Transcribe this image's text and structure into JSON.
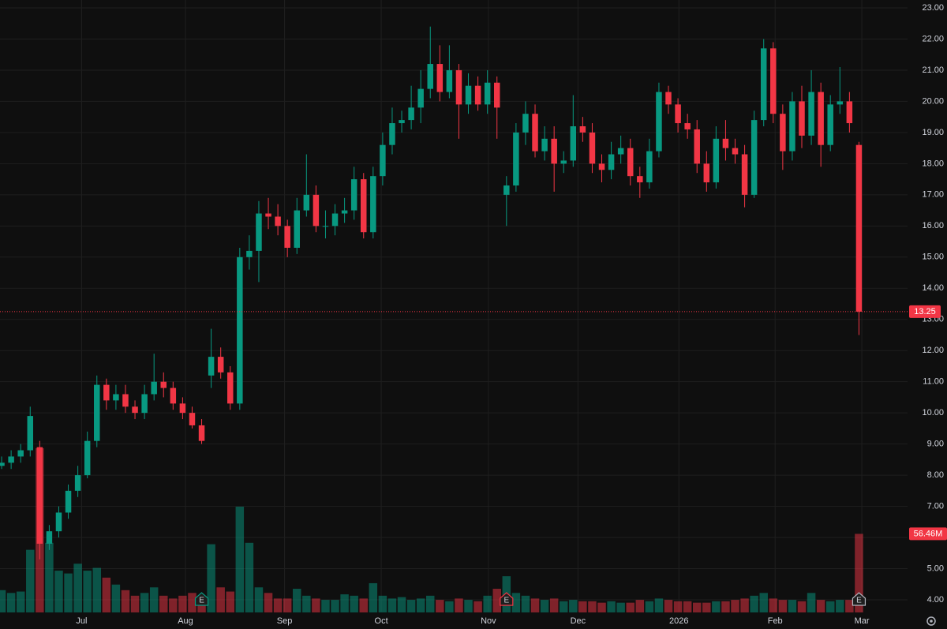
{
  "chart_data": {
    "type": "candlestick",
    "open": [
      8.3,
      8.4,
      8.6,
      8.8,
      8.9,
      5.8,
      6.2,
      6.8,
      7.5,
      8.0,
      9.1,
      10.9,
      10.4,
      10.6,
      10.2,
      10.0,
      10.6,
      11.0,
      10.8,
      10.3,
      10.0,
      9.6,
      11.2,
      11.8,
      11.3,
      10.3,
      15.0,
      15.2,
      16.4,
      16.3,
      16.0,
      15.3,
      16.5,
      17.0,
      16.0,
      16.0,
      16.4,
      16.5,
      17.5,
      15.8,
      17.6,
      18.6,
      19.3,
      19.4,
      19.8,
      20.4,
      21.2,
      20.3,
      21.0,
      19.9,
      20.5,
      19.9,
      20.6,
      17.0,
      17.3,
      19.0,
      19.6,
      18.4,
      18.8,
      18.0,
      18.1,
      19.2,
      19.0,
      18.0,
      17.8,
      18.3,
      18.5,
      17.6,
      17.4,
      18.4,
      20.3,
      19.9,
      19.3,
      19.1,
      18.0,
      17.4,
      18.8,
      18.5,
      18.3,
      17.0,
      19.4,
      21.7,
      19.6,
      18.4,
      20.0,
      18.9,
      20.3,
      18.6,
      19.9,
      20.0,
      18.6
    ],
    "high": [
      8.6,
      8.8,
      9.0,
      10.2,
      9.1,
      6.4,
      7.0,
      7.7,
      8.3,
      9.4,
      11.2,
      11.1,
      10.9,
      10.9,
      10.4,
      10.9,
      11.9,
      11.3,
      11.0,
      10.5,
      10.2,
      9.8,
      12.7,
      12.1,
      11.5,
      15.3,
      15.7,
      16.8,
      16.9,
      16.7,
      16.2,
      16.9,
      18.3,
      17.3,
      16.5,
      16.7,
      16.9,
      17.9,
      17.7,
      17.9,
      19.0,
      19.8,
      19.7,
      20.5,
      21.0,
      22.4,
      21.8,
      21.8,
      21.2,
      20.9,
      20.8,
      21.0,
      20.8,
      17.6,
      19.3,
      20.0,
      19.9,
      19.2,
      19.2,
      18.4,
      20.2,
      19.5,
      19.3,
      18.3,
      18.7,
      18.9,
      18.8,
      17.9,
      18.8,
      20.6,
      20.5,
      20.1,
      19.6,
      19.4,
      18.4,
      19.2,
      19.4,
      18.8,
      18.6,
      19.7,
      22.0,
      21.9,
      19.9,
      20.3,
      20.5,
      21.0,
      20.6,
      20.2,
      21.1,
      20.3,
      18.7
    ],
    "low": [
      8.2,
      8.2,
      8.4,
      8.6,
      5.3,
      5.6,
      6.0,
      6.6,
      7.3,
      7.9,
      8.9,
      10.1,
      10.1,
      10.0,
      9.8,
      9.8,
      10.4,
      10.5,
      10.1,
      9.8,
      9.5,
      9.0,
      10.8,
      11.1,
      10.1,
      10.1,
      14.6,
      14.2,
      15.9,
      15.7,
      15.0,
      15.1,
      16.3,
      15.8,
      15.6,
      15.7,
      16.1,
      16.2,
      15.6,
      15.6,
      17.3,
      18.3,
      19.0,
      19.1,
      19.3,
      20.1,
      20.0,
      20.1,
      18.8,
      19.6,
      19.7,
      19.6,
      18.8,
      16.0,
      17.1,
      18.6,
      18.2,
      18.1,
      17.1,
      17.7,
      17.9,
      18.7,
      17.7,
      17.4,
      17.5,
      18.0,
      17.3,
      16.9,
      17.2,
      18.2,
      19.6,
      19.0,
      18.8,
      17.7,
      17.1,
      17.2,
      18.1,
      18.0,
      16.6,
      16.9,
      19.2,
      19.3,
      17.8,
      18.1,
      18.5,
      18.6,
      17.9,
      18.4,
      19.6,
      19.0,
      12.5
    ],
    "close": [
      8.4,
      8.6,
      8.8,
      9.9,
      5.8,
      6.2,
      6.8,
      7.5,
      8.0,
      9.1,
      10.9,
      10.4,
      10.6,
      10.2,
      10.0,
      10.6,
      11.0,
      10.8,
      10.3,
      10.0,
      9.6,
      9.1,
      11.8,
      11.3,
      10.3,
      15.0,
      15.2,
      16.4,
      16.3,
      16.0,
      15.3,
      16.5,
      17.0,
      16.0,
      16.0,
      16.4,
      16.5,
      17.5,
      15.8,
      17.6,
      18.6,
      19.3,
      19.4,
      19.8,
      20.4,
      21.2,
      20.3,
      21.0,
      19.9,
      20.5,
      19.9,
      20.6,
      19.8,
      17.3,
      19.0,
      19.6,
      18.4,
      18.8,
      18.0,
      18.1,
      19.2,
      19.0,
      18.0,
      17.8,
      18.3,
      18.5,
      17.6,
      17.4,
      18.4,
      20.3,
      19.9,
      19.3,
      19.1,
      18.0,
      17.4,
      18.8,
      18.5,
      18.3,
      17.0,
      19.4,
      21.7,
      19.6,
      18.4,
      20.0,
      18.9,
      20.3,
      18.6,
      19.9,
      20.0,
      19.3,
      13.25
    ],
    "volume": [
      16000000,
      14000000,
      15000000,
      45000000,
      118000000,
      50000000,
      30000000,
      28000000,
      35000000,
      30000000,
      32000000,
      25000000,
      20000000,
      16000000,
      12000000,
      14000000,
      18000000,
      12000000,
      10000000,
      12000000,
      14000000,
      10000000,
      49000000,
      18000000,
      15000000,
      76000000,
      50000000,
      18000000,
      14000000,
      10000000,
      10000000,
      17000000,
      12000000,
      10000000,
      9000000,
      9000000,
      13000000,
      12000000,
      10000000,
      21000000,
      12000000,
      10000000,
      11000000,
      9000000,
      10000000,
      12000000,
      9000000,
      8000000,
      10000000,
      9000000,
      8000000,
      12000000,
      17000000,
      26000000,
      14000000,
      12000000,
      10000000,
      9000000,
      10000000,
      8000000,
      9000000,
      8000000,
      8000000,
      7000000,
      8000000,
      7000000,
      7000000,
      9000000,
      8000000,
      10000000,
      9000000,
      8000000,
      8000000,
      7000000,
      7000000,
      8000000,
      8000000,
      9000000,
      10000000,
      12000000,
      14000000,
      10000000,
      9000000,
      9000000,
      8000000,
      14000000,
      9000000,
      8000000,
      9000000,
      9000000,
      56460000
    ],
    "last_volume_label": "56.46M",
    "up_color": "#089981",
    "down_color": "#f23645",
    "xlim": [
      -0.17,
      95.1
    ],
    "xticks": [
      {
        "value": 8.4,
        "label": "Jul"
      },
      {
        "value": 19.3,
        "label": "Aug"
      },
      {
        "value": 29.7,
        "label": "Sep"
      },
      {
        "value": 39.85,
        "label": "Oct"
      },
      {
        "value": 51.1,
        "label": "Nov"
      },
      {
        "value": 60.5,
        "label": "Dec"
      },
      {
        "value": 71.1,
        "label": "2026"
      },
      {
        "value": 81.2,
        "label": "Feb"
      },
      {
        "value": 90.3,
        "label": "Mar"
      }
    ],
    "ylim": [
      4,
      23
    ],
    "yticks": [
      {
        "value": 4,
        "label": "4.00"
      },
      {
        "value": 5,
        "label": "5.00"
      },
      {
        "value": 6,
        "label": "6.00"
      },
      {
        "value": 7,
        "label": "7.00"
      },
      {
        "value": 8,
        "label": "8.00"
      },
      {
        "value": 9,
        "label": "9.00"
      },
      {
        "value": 10,
        "label": "10.00"
      },
      {
        "value": 11,
        "label": "11.00"
      },
      {
        "value": 12,
        "label": "12.00"
      },
      {
        "value": 13,
        "label": "13.00"
      },
      {
        "value": 14,
        "label": "14.00"
      },
      {
        "value": 15,
        "label": "15.00"
      },
      {
        "value": 16,
        "label": "16.00"
      },
      {
        "value": 17,
        "label": "17.00"
      },
      {
        "value": 18,
        "label": "18.00"
      },
      {
        "value": 19,
        "label": "19.00"
      },
      {
        "value": 20,
        "label": "20.00"
      },
      {
        "value": 21,
        "label": "21.00"
      },
      {
        "value": 22,
        "label": "22.00"
      },
      {
        "value": 23,
        "label": "23.00"
      }
    ],
    "volume_lim": [
      0,
      440000000
    ],
    "earnings": [
      {
        "label": "E",
        "at": 21
      },
      {
        "label": "E",
        "at": 53
      },
      {
        "label": "E",
        "at": 90
      }
    ],
    "grid": true
  }
}
